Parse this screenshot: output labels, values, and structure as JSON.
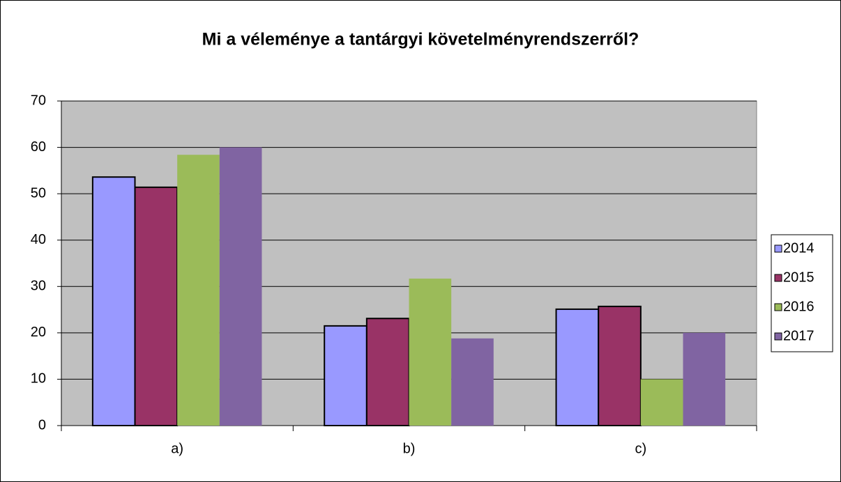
{
  "chart_data": {
    "type": "bar",
    "title": "Mi a véleménye a tantárgyi követelményrendszerről?",
    "categories": [
      "a)",
      "b)",
      "c)"
    ],
    "series": [
      {
        "name": "2014",
        "color": "#9999ff",
        "values": [
          53.6,
          21.5,
          25.1
        ]
      },
      {
        "name": "2015",
        "color": "#993366",
        "values": [
          51.4,
          23.1,
          25.7
        ]
      },
      {
        "name": "2016",
        "color": "#9bbb59",
        "values": [
          58.4,
          31.7,
          10
        ]
      },
      {
        "name": "2017",
        "color": "#8064a2",
        "values": [
          60,
          18.8,
          20
        ]
      }
    ],
    "ylim": [
      0,
      70
    ],
    "yticks": [
      0,
      10,
      20,
      30,
      40,
      50,
      60,
      70
    ],
    "grid": true,
    "legend": "right"
  }
}
